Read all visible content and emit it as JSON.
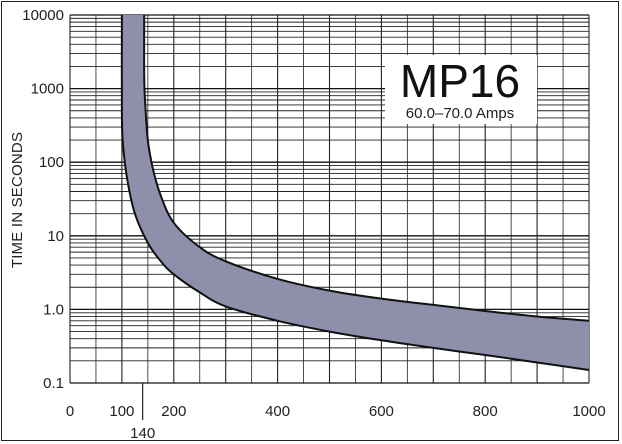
{
  "chart_data": {
    "type": "area",
    "title": "MP16",
    "subtitle": "60.0–70.0 Amps",
    "xlabel": "",
    "ylabel": "TIME IN SECONDS",
    "xlim": [
      0,
      1000
    ],
    "ylim": [
      0.1,
      10000
    ],
    "yscale": "log",
    "grid": true,
    "x_tick_labels": [
      "0",
      "100",
      "200",
      "400",
      "600",
      "800",
      "1000"
    ],
    "x_tick_values": [
      0,
      100,
      200,
      400,
      600,
      800,
      1000
    ],
    "x_marker_label": "140",
    "x_marker_value": 140,
    "y_tick_labels": [
      "10000",
      "1000",
      "100",
      "10",
      "1.0",
      "0.1"
    ],
    "y_tick_values": [
      10000,
      1000,
      100,
      10,
      1,
      0.1
    ],
    "series": [
      {
        "role": "upper",
        "x": [
          143,
          143,
          145,
          150,
          160,
          175,
          200,
          250,
          300,
          400,
          500,
          600,
          700,
          800,
          900,
          1000
        ],
        "y": [
          10000,
          1500,
          600,
          200,
          80,
          35,
          15,
          7,
          4.5,
          2.6,
          1.8,
          1.4,
          1.15,
          0.95,
          0.8,
          0.7
        ]
      },
      {
        "role": "lower",
        "x": [
          100,
          100,
          102,
          110,
          125,
          150,
          175,
          200,
          250,
          300,
          400,
          500,
          600,
          700,
          800,
          900,
          1000
        ],
        "y": [
          10000,
          450,
          180,
          60,
          20,
          8,
          4.5,
          3,
          1.7,
          1.1,
          0.7,
          0.5,
          0.38,
          0.3,
          0.24,
          0.19,
          0.15
        ]
      }
    ],
    "band_color": "#8e90ab",
    "line_color": "#111111"
  }
}
